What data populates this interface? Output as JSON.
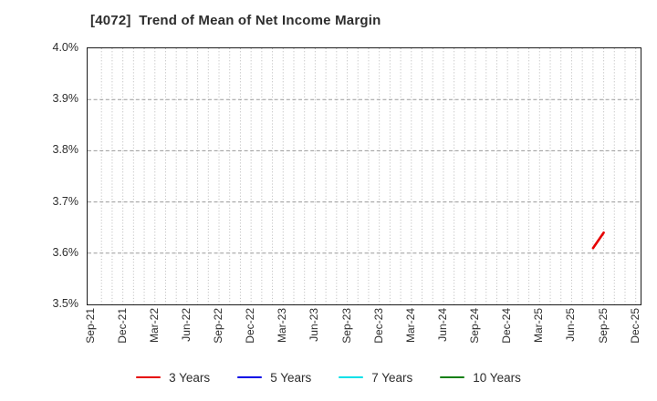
{
  "chart_data": {
    "type": "line",
    "title": "[4072]  Trend of Mean of Net Income Margin",
    "xlabel": "",
    "ylabel": "",
    "y_axis": {
      "min": 3.5,
      "max": 4.0,
      "tick_labels_top_to_bottom": [
        "4.0%",
        "3.9%",
        "3.8%",
        "3.7%",
        "3.6%",
        "3.5%"
      ],
      "gridlines_at": [
        3.9,
        3.8,
        3.7,
        3.6
      ]
    },
    "x_axis": {
      "start_month": "Sep-21",
      "end_month": "Dec-25",
      "months_total": 52,
      "tick_every_months": 3,
      "tick_labels": [
        "Sep-21",
        "Dec-21",
        "Mar-22",
        "Jun-22",
        "Sep-22",
        "Dec-22",
        "Mar-23",
        "Jun-23",
        "Sep-23",
        "Dec-23",
        "Mar-24",
        "Jun-24",
        "Sep-24",
        "Dec-24",
        "Mar-25",
        "Jun-25",
        "Sep-25",
        "Dec-25"
      ],
      "minor_gridlines": "monthly"
    },
    "series": [
      {
        "name": "3 Years",
        "color": "#e60000",
        "points": [
          {
            "month": "Aug-25",
            "month_index": 47,
            "value": 3.61
          },
          {
            "month": "Sep-25",
            "month_index": 48,
            "value": 3.64
          }
        ]
      },
      {
        "name": "5 Years",
        "color": "#0000e6",
        "points": []
      },
      {
        "name": "7 Years",
        "color": "#00e0e8",
        "points": []
      },
      {
        "name": "10 Years",
        "color": "#0f7f0f",
        "points": []
      }
    ],
    "legend_position": "bottom-center",
    "style": {
      "background": "#ffffff",
      "plot_border_color": "#1b1b1b",
      "h_grid": "dashed",
      "v_grid": "dotted",
      "grid_color_h": "#9a9a9a",
      "grid_color_v": "#b8b8b8"
    }
  }
}
